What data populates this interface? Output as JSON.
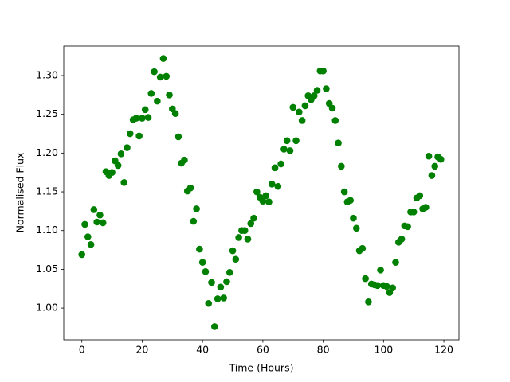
{
  "chart_data": {
    "type": "scatter",
    "x_label": "Time (Hours)",
    "y_label": "Normalised Flux",
    "color": "#008000",
    "x": [
      0,
      1,
      2,
      3,
      4,
      5,
      6,
      7,
      8,
      9,
      10,
      11,
      12,
      13,
      14,
      15,
      16,
      17,
      18,
      19,
      20,
      21,
      22,
      23,
      24,
      25,
      26,
      27,
      28,
      29,
      30,
      31,
      32,
      33,
      34,
      35,
      36,
      37,
      38,
      39,
      40,
      41,
      42,
      43,
      44,
      45,
      46,
      47,
      48,
      49,
      50,
      51,
      52,
      53,
      54,
      55,
      56,
      57,
      58,
      59,
      60,
      61,
      62,
      63,
      64,
      65,
      66,
      67,
      68,
      69,
      70,
      71,
      72,
      73,
      74,
      75,
      76,
      77,
      78,
      79,
      80,
      81,
      82,
      83,
      84,
      85,
      86,
      87,
      88,
      89,
      90,
      91,
      92,
      93,
      94,
      95,
      96,
      97,
      98,
      99,
      100,
      101,
      102,
      103,
      104,
      105,
      106,
      107,
      108,
      109,
      110,
      111,
      112,
      113,
      114,
      115,
      116,
      117,
      118,
      119
    ],
    "values": [
      1.069,
      1.108,
      1.092,
      1.082,
      1.127,
      1.111,
      1.12,
      1.11,
      1.176,
      1.171,
      1.175,
      1.19,
      1.184,
      1.199,
      1.162,
      1.207,
      1.225,
      1.243,
      1.245,
      1.222,
      1.245,
      1.256,
      1.246,
      1.277,
      1.305,
      1.267,
      1.298,
      1.322,
      1.299,
      1.275,
      1.257,
      1.251,
      1.221,
      1.187,
      1.191,
      1.151,
      1.155,
      1.112,
      1.128,
      1.076,
      1.059,
      1.047,
      1.006,
      1.033,
      0.976,
      1.012,
      1.027,
      1.013,
      1.034,
      1.046,
      1.074,
      1.063,
      1.091,
      1.1,
      1.1,
      1.089,
      1.109,
      1.116,
      1.15,
      1.143,
      1.138,
      1.145,
      1.137,
      1.16,
      1.181,
      1.157,
      1.186,
      1.205,
      1.216,
      1.203,
      1.259,
      1.216,
      1.253,
      1.242,
      1.261,
      1.274,
      1.269,
      1.274,
      1.281,
      1.306,
      1.306,
      1.283,
      1.264,
      1.258,
      1.242,
      1.213,
      1.183,
      1.15,
      1.137,
      1.139,
      1.116,
      1.103,
      1.074,
      1.077,
      1.038,
      1.008,
      1.031,
      1.03,
      1.029,
      1.049,
      1.029,
      1.028,
      1.02,
      1.026,
      1.059,
      1.085,
      1.089,
      1.106,
      1.105,
      1.124,
      1.124,
      1.142,
      1.145,
      1.128,
      1.13,
      1.196,
      1.171,
      1.183,
      1.195,
      1.192
    ],
    "xlim": [
      -6,
      125
    ],
    "ylim": [
      0.959,
      1.338
    ],
    "xticks": [
      0,
      20,
      40,
      60,
      80,
      100,
      120
    ],
    "yticks": [
      {
        "value": 1.0,
        "label": "1.00"
      },
      {
        "value": 1.05,
        "label": "1.05"
      },
      {
        "value": 1.1,
        "label": "1.10"
      },
      {
        "value": 1.15,
        "label": "1.15"
      },
      {
        "value": 1.2,
        "label": "1.20"
      },
      {
        "value": 1.25,
        "label": "1.25"
      },
      {
        "value": 1.3,
        "label": "1.30"
      }
    ]
  }
}
